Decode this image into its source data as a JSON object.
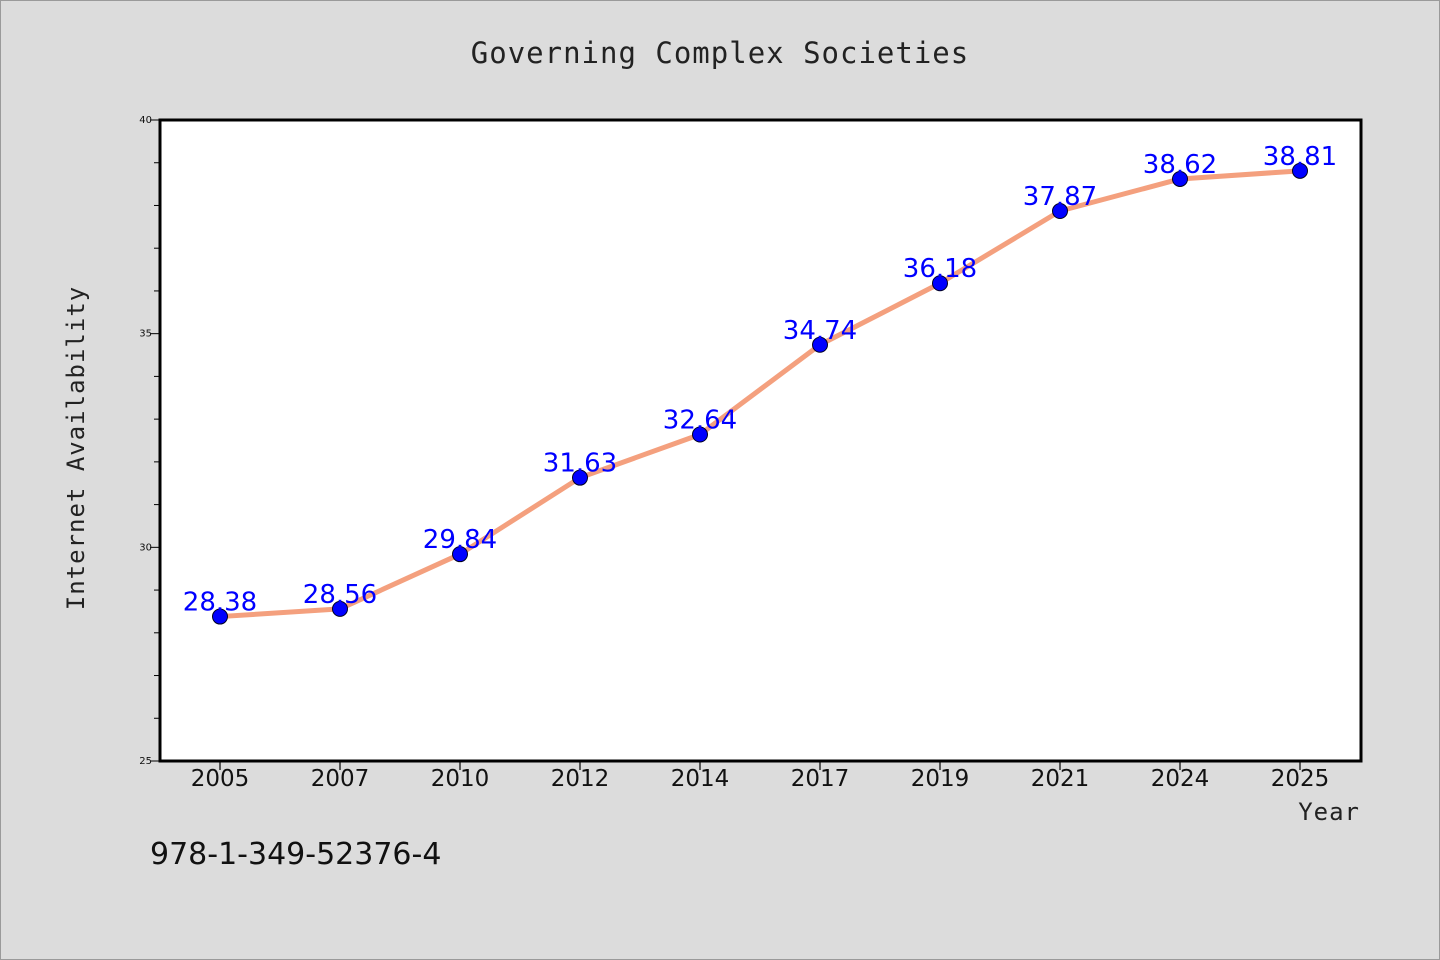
{
  "chart_data": {
    "type": "line",
    "title": "Governing Complex Societies",
    "xlabel": "Year",
    "ylabel": "Internet Availability",
    "categories": [
      "2005",
      "2007",
      "2010",
      "2012",
      "2014",
      "2017",
      "2019",
      "2021",
      "2024",
      "2025"
    ],
    "series": [
      {
        "values": [
          28.38,
          28.56,
          29.84,
          31.63,
          32.64,
          34.74,
          36.18,
          37.87,
          38.62,
          38.81
        ],
        "data_labels": [
          "28.38",
          "28.56",
          "29.84",
          "31.63",
          "32.64",
          "34.74",
          "36.18",
          "37.87",
          "38.62",
          "38.81"
        ],
        "line_color": "#f4a07e",
        "marker_color": "#0000ff"
      }
    ],
    "ylim": [
      25,
      40
    ],
    "y_major_ticks": [
      "25",
      "30",
      "35",
      "40"
    ],
    "y_minor_step": 1,
    "grid": false,
    "legend": "none"
  },
  "footer_text": "978-1-349-52376-4",
  "colors": {
    "background": "#dcdcdc",
    "plot_background": "#ffffff",
    "axis": "#000000",
    "line": "#f4a07e",
    "marker": "#0000ff",
    "data_label": "#0000ff"
  }
}
